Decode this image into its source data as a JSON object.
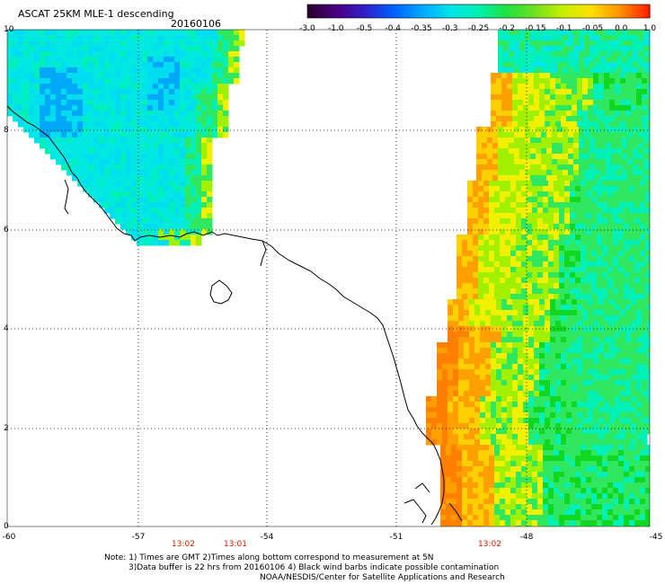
{
  "header": {
    "title": "ASCAT 25KM MLE-1 descending",
    "date": "20160106"
  },
  "colorbar": {
    "ticks": [
      "-3.0",
      "-1.0",
      "-0.5",
      "-0.4",
      "-0.35",
      "-0.3",
      "-0.25",
      "-0.2",
      "-0.15",
      "-0.1",
      "-0.05",
      "0.0",
      "1.0"
    ],
    "colors": [
      "#2a0030",
      "#4a0080",
      "#3020c8",
      "#0060ff",
      "#00a8ff",
      "#00e4e8",
      "#00f0b0",
      "#20e040",
      "#70e020",
      "#c8f000",
      "#ffe000",
      "#ff9000",
      "#ff2000"
    ]
  },
  "axes": {
    "y_labels": [
      "10",
      "8",
      "6",
      "4",
      "2",
      "0"
    ],
    "x_labels": [
      "-60",
      "-57",
      "-54",
      "-51",
      "-48",
      "-45"
    ],
    "lat_range": [
      0,
      10
    ],
    "lon_range": [
      -60,
      -45
    ]
  },
  "times": [
    "13:02",
    "13:01",
    "13:02"
  ],
  "footer": {
    "note1": "Note: 1) Times are GMT 2)Times along bottom correspond to measurement at 5N",
    "note2": "3)Data buffer is 22 hrs from 20160106 4) Black wind barbs indicate possible contamination",
    "note3": "NOAA/NESDIS/Center for Satellite Applications and Research"
  }
}
